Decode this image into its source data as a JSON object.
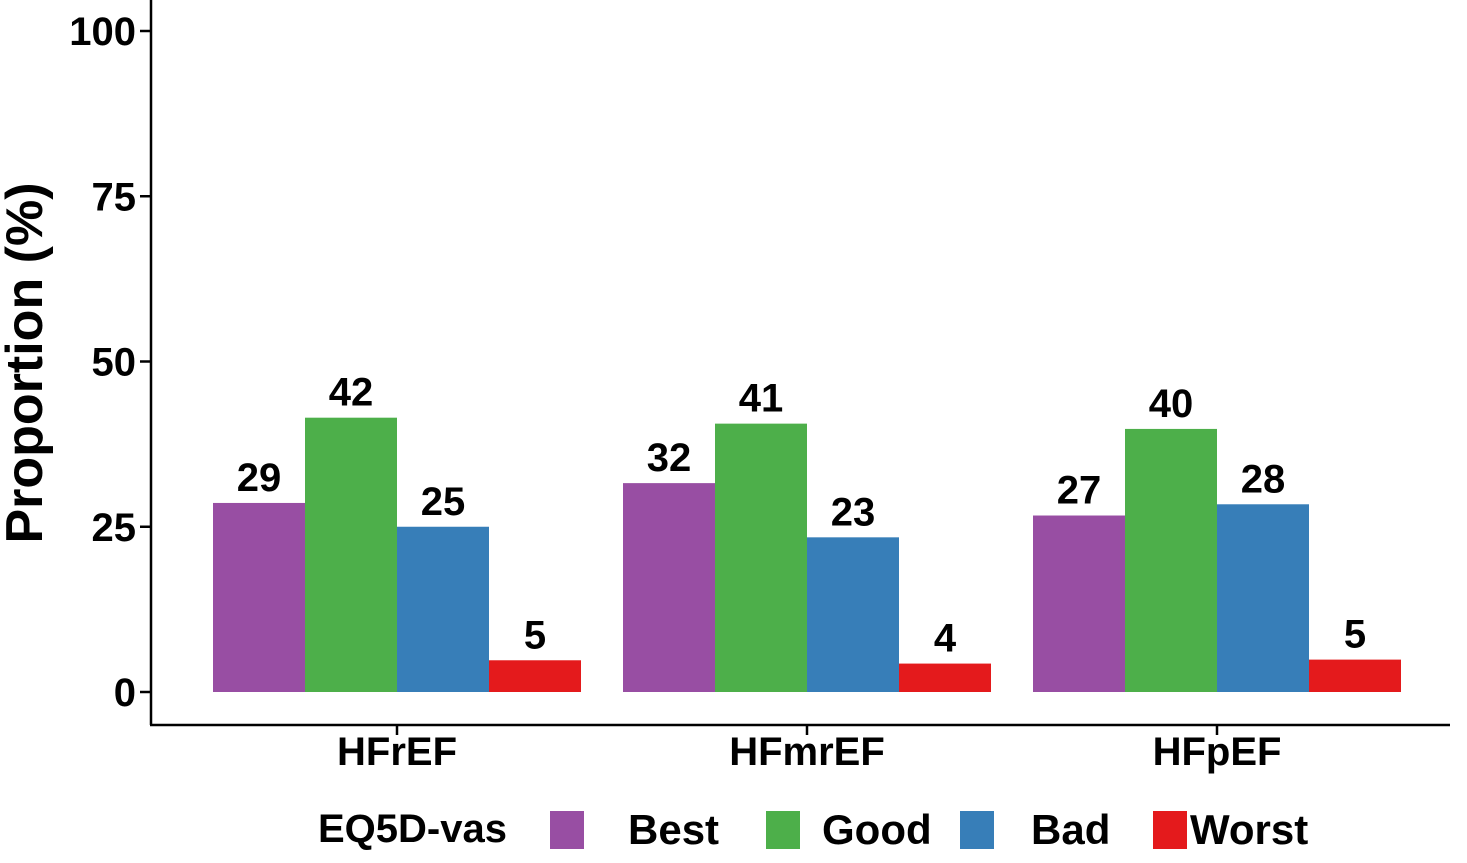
{
  "chart_data": {
    "type": "bar",
    "title": "",
    "xlabel": "",
    "ylabel": "Proportion (%)",
    "ylim": [
      0,
      100
    ],
    "yticks": [
      0,
      25,
      50,
      75,
      100
    ],
    "grid": false,
    "legend_position": "bottom",
    "categories": [
      "HFrEF",
      "HFmrEF",
      "HFpEF"
    ],
    "series": [
      {
        "name": "Best",
        "color": "#984EA3",
        "values": [
          29,
          32,
          27
        ],
        "exact": [
          28.6,
          31.6,
          26.7
        ]
      },
      {
        "name": "Good",
        "color": "#4DAF4A",
        "values": [
          42,
          41,
          40
        ],
        "exact": [
          41.5,
          40.6,
          39.8
        ]
      },
      {
        "name": "Bad",
        "color": "#377EB8",
        "values": [
          25,
          23,
          28
        ],
        "exact": [
          25.0,
          23.4,
          28.4
        ]
      },
      {
        "name": "Worst",
        "color": "#E41A1C",
        "values": [
          5,
          4,
          5
        ],
        "exact": [
          4.8,
          4.3,
          4.9
        ]
      }
    ],
    "legend_title": "EQ5D-vas"
  }
}
